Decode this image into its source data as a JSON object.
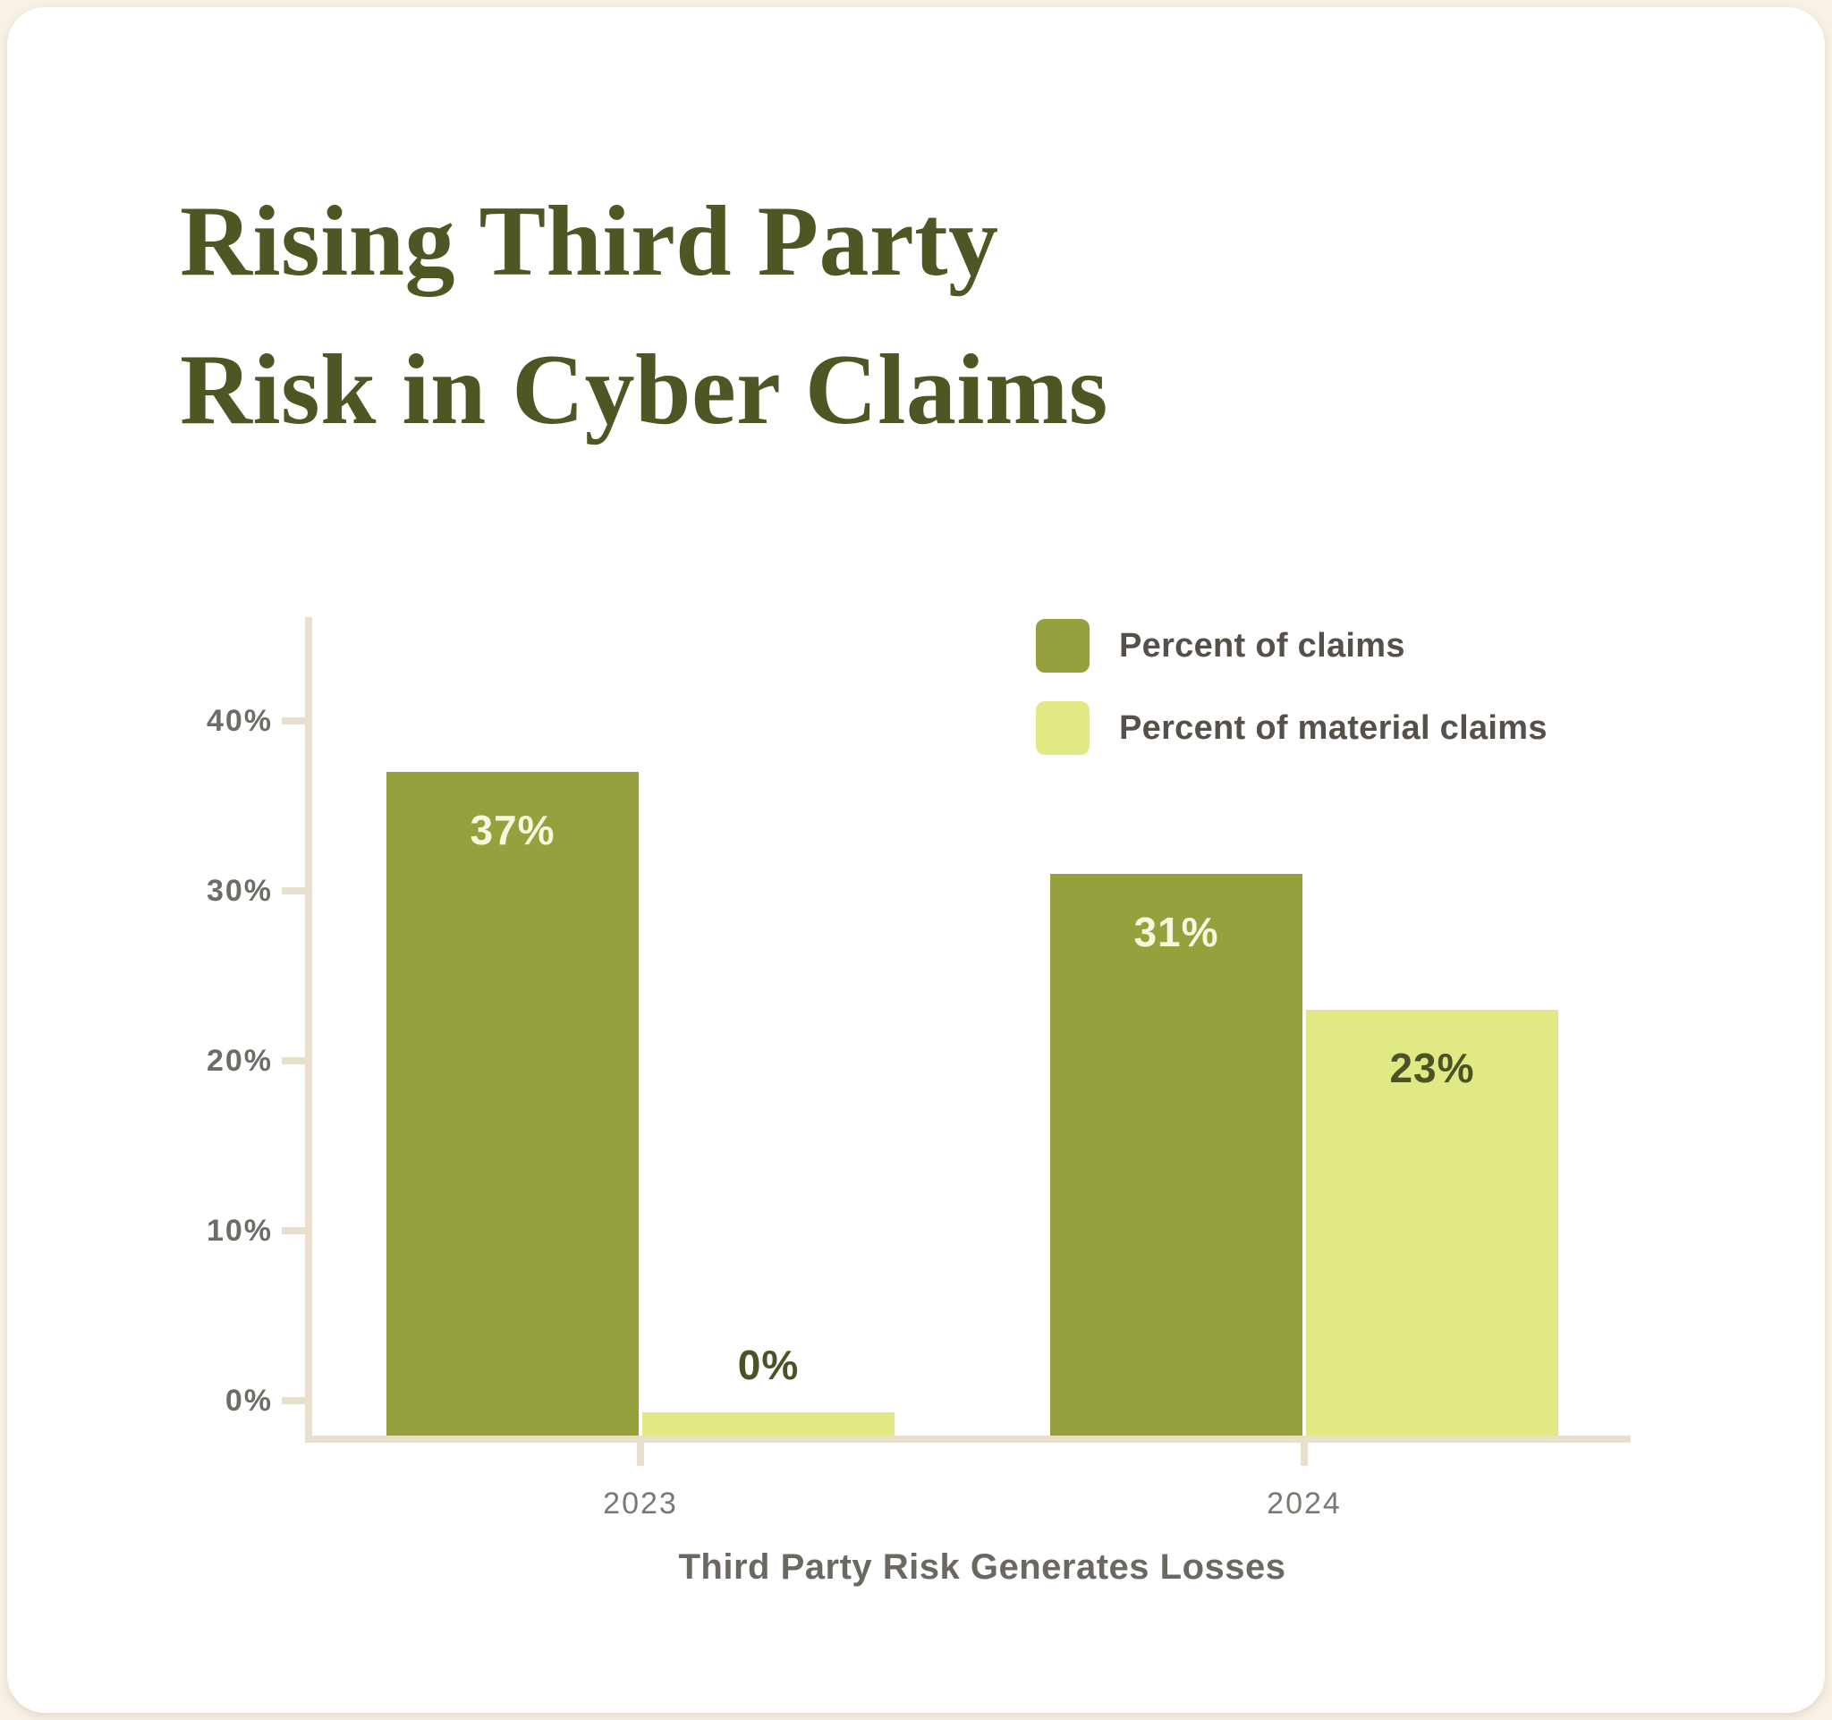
{
  "title": {
    "line1": "Rising Third Party",
    "line2": "Risk in Cyber Claims",
    "color": "#4c5723"
  },
  "chart_data": {
    "type": "bar",
    "title": "Rising Third Party Risk in Cyber Claims",
    "categories": [
      "2023",
      "2024"
    ],
    "series": [
      {
        "name": "Percent of claims",
        "color": "#96a03c",
        "values": [
          37,
          31
        ],
        "value_labels": [
          "37%",
          "31%"
        ],
        "value_label_color": "#f4f8df"
      },
      {
        "name": "Percent of material claims",
        "color": "#e1e985",
        "values": [
          0,
          23
        ],
        "value_labels": [
          "0%",
          "23%"
        ],
        "value_label_color": "#4b5226"
      }
    ],
    "xlabel": "Third Party Risk Generates Losses",
    "ylabel": "",
    "yticks": {
      "values": [
        0,
        10,
        20,
        30,
        40
      ],
      "labels": [
        "0%",
        "10%",
        "20%",
        "30%",
        "40%"
      ]
    },
    "ylim": [
      -2,
      44
    ],
    "grid": false,
    "legend_position": "top-right",
    "axis_color": "#e9dfcd",
    "ytick_label_color": "#6f6c66",
    "xtick_label_color": "#7b7871",
    "xlabel_color": "#6b6862"
  }
}
